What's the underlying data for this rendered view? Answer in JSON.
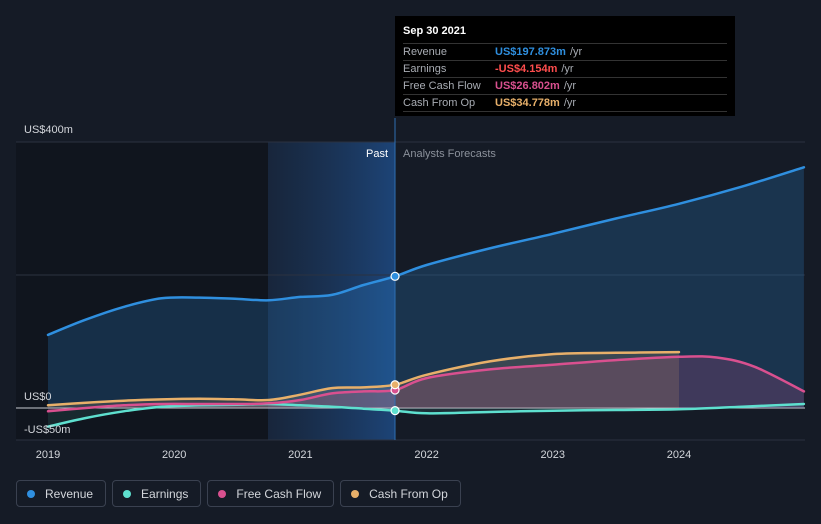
{
  "chart_data": {
    "type": "area",
    "x_ticks": [
      "2019",
      "2020",
      "2021",
      "2022",
      "2023",
      "2024"
    ],
    "y_ticks": [
      "US$400m",
      "US$0",
      "-US$50m"
    ],
    "ylim": [
      -50,
      400
    ],
    "divider_x": 2021.75,
    "past_label": "Past",
    "forecast_label": "Analysts Forecasts",
    "series": [
      {
        "name": "Revenue",
        "color": "#2f8fdf",
        "points": [
          [
            2019.0,
            110
          ],
          [
            2019.3,
            133
          ],
          [
            2019.6,
            152
          ],
          [
            2019.9,
            165
          ],
          [
            2020.2,
            166
          ],
          [
            2020.5,
            164
          ],
          [
            2020.75,
            162
          ],
          [
            2021.0,
            167
          ],
          [
            2021.25,
            170
          ],
          [
            2021.5,
            185
          ],
          [
            2021.75,
            198
          ],
          [
            2022.0,
            215
          ],
          [
            2022.5,
            240
          ],
          [
            2023.0,
            262
          ],
          [
            2023.5,
            285
          ],
          [
            2024.0,
            307
          ],
          [
            2024.5,
            333
          ],
          [
            2024.99,
            362
          ]
        ],
        "forecast_end_x": 2024.99
      },
      {
        "name": "Earnings",
        "color": "#5ee0cf",
        "points": [
          [
            2019.0,
            -28
          ],
          [
            2019.3,
            -15
          ],
          [
            2019.6,
            -5
          ],
          [
            2019.9,
            2
          ],
          [
            2020.2,
            4
          ],
          [
            2020.5,
            5
          ],
          [
            2020.75,
            6
          ],
          [
            2021.0,
            4
          ],
          [
            2021.25,
            2
          ],
          [
            2021.5,
            -1
          ],
          [
            2021.75,
            -4
          ],
          [
            2022.0,
            -8
          ],
          [
            2022.5,
            -6
          ],
          [
            2023.0,
            -4
          ],
          [
            2023.5,
            -3
          ],
          [
            2024.0,
            -2
          ],
          [
            2024.5,
            2
          ],
          [
            2024.99,
            6
          ]
        ],
        "forecast_end_x": 2024.99
      },
      {
        "name": "Free Cash Flow",
        "color": "#d9508f",
        "points": [
          [
            2019.0,
            -5
          ],
          [
            2019.3,
            0
          ],
          [
            2019.6,
            4
          ],
          [
            2019.9,
            6
          ],
          [
            2020.2,
            6
          ],
          [
            2020.5,
            6
          ],
          [
            2020.75,
            7
          ],
          [
            2021.0,
            12
          ],
          [
            2021.25,
            22
          ],
          [
            2021.5,
            25
          ],
          [
            2021.75,
            27
          ],
          [
            2022.0,
            45
          ],
          [
            2022.5,
            58
          ],
          [
            2023.0,
            65
          ],
          [
            2023.5,
            72
          ],
          [
            2024.0,
            77
          ],
          [
            2024.3,
            76
          ],
          [
            2024.6,
            62
          ],
          [
            2024.99,
            25
          ]
        ],
        "forecast_end_x": 2024.99
      },
      {
        "name": "Cash From Op",
        "color": "#e8b06a",
        "points": [
          [
            2019.0,
            4
          ],
          [
            2019.3,
            8
          ],
          [
            2019.6,
            11
          ],
          [
            2019.9,
            13
          ],
          [
            2020.2,
            14
          ],
          [
            2020.5,
            13
          ],
          [
            2020.75,
            12
          ],
          [
            2021.0,
            20
          ],
          [
            2021.25,
            30
          ],
          [
            2021.5,
            31
          ],
          [
            2021.75,
            35
          ],
          [
            2022.0,
            50
          ],
          [
            2022.5,
            70
          ],
          [
            2023.0,
            81
          ],
          [
            2023.5,
            83
          ],
          [
            2024.0,
            84
          ]
        ],
        "forecast_end_x": 2024.0
      }
    ]
  },
  "tooltip": {
    "date": "Sep 30 2021",
    "rows": [
      {
        "label": "Revenue",
        "value": "US$197.873m",
        "unit": "/yr",
        "color": "#2f8fdf"
      },
      {
        "label": "Earnings",
        "value": "-US$4.154m",
        "unit": "/yr",
        "color": "#ff4d4d"
      },
      {
        "label": "Free Cash Flow",
        "value": "US$26.802m",
        "unit": "/yr",
        "color": "#d9508f"
      },
      {
        "label": "Cash From Op",
        "value": "US$34.778m",
        "unit": "/yr",
        "color": "#e8b06a"
      }
    ]
  },
  "legend": [
    {
      "label": "Revenue",
      "color": "#2f8fdf"
    },
    {
      "label": "Earnings",
      "color": "#5ee0cf"
    },
    {
      "label": "Free Cash Flow",
      "color": "#d9508f"
    },
    {
      "label": "Cash From Op",
      "color": "#e8b06a"
    }
  ]
}
